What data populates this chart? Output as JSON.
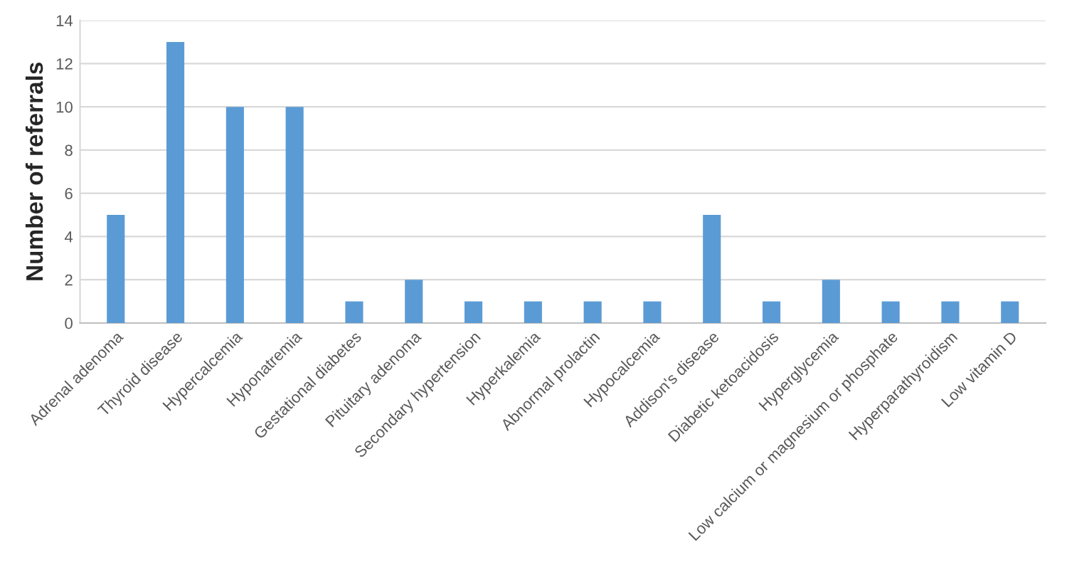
{
  "chart_data": {
    "type": "bar",
    "ylabel": "Number of referrals",
    "categories": [
      "Adrenal adenoma",
      "Thyroid disease",
      "Hypercalcemia",
      "Hyponatremia",
      "Gestational diabetes",
      "Pituitary adenoma",
      "Secondary hypertension",
      "Hyperkalemia",
      "Abnormal prolactin",
      "Hypocalcemia",
      "Addison's disease",
      "Diabetic ketoacidosis",
      "Hyperglycemia",
      "Low calcium or magnesium or phosphate",
      "Hyperparathyroidism",
      "Low vitamin D"
    ],
    "values": [
      5,
      13,
      10,
      10,
      1,
      2,
      1,
      1,
      1,
      1,
      5,
      1,
      2,
      1,
      1,
      1
    ],
    "color": "#5b9bd5",
    "ylim": [
      0,
      14
    ],
    "yticks": [
      0,
      2,
      4,
      6,
      8,
      10,
      12,
      14
    ],
    "grid": "y",
    "legend": false
  }
}
